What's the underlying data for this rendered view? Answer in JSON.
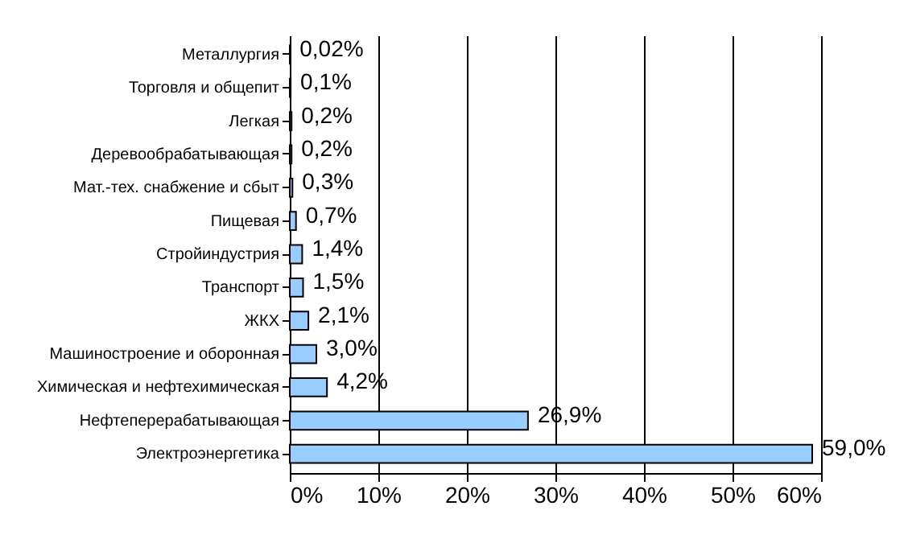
{
  "chart_data": {
    "type": "bar",
    "orientation": "horizontal",
    "categories": [
      "Металлургия",
      "Торговля и общепит",
      "Легкая",
      "Деревообрабатывающая",
      "Мат.-тех. снабжение и сбыт",
      "Пищевая",
      "Стройиндустрия",
      "Транспорт",
      "ЖКХ",
      "Машиностроение и оборонная",
      "Химическая и нефтехимическая",
      "Нефтеперерабатывающая",
      "Электроэнергетика"
    ],
    "values": [
      0.02,
      0.1,
      0.2,
      0.2,
      0.3,
      0.7,
      1.4,
      1.5,
      2.1,
      3.0,
      4.2,
      26.9,
      59.0
    ],
    "value_labels": [
      "0,02%",
      "0,1%",
      "0,2%",
      "0,2%",
      "0,3%",
      "0,7%",
      "1,4%",
      "1,5%",
      "2,1%",
      "3,0%",
      "4,2%",
      "26,9%",
      "59,0%"
    ],
    "color": "#99ccff",
    "xlim": [
      0,
      60
    ],
    "xticks": [
      {
        "value": 0,
        "label": "0%"
      },
      {
        "value": 10,
        "label": "10%"
      },
      {
        "value": 20,
        "label": "20%"
      },
      {
        "value": 30,
        "label": "30%"
      },
      {
        "value": 40,
        "label": "40%"
      },
      {
        "value": 50,
        "label": "50%"
      },
      {
        "value": 60,
        "label": "60%"
      }
    ],
    "grid": "x"
  }
}
